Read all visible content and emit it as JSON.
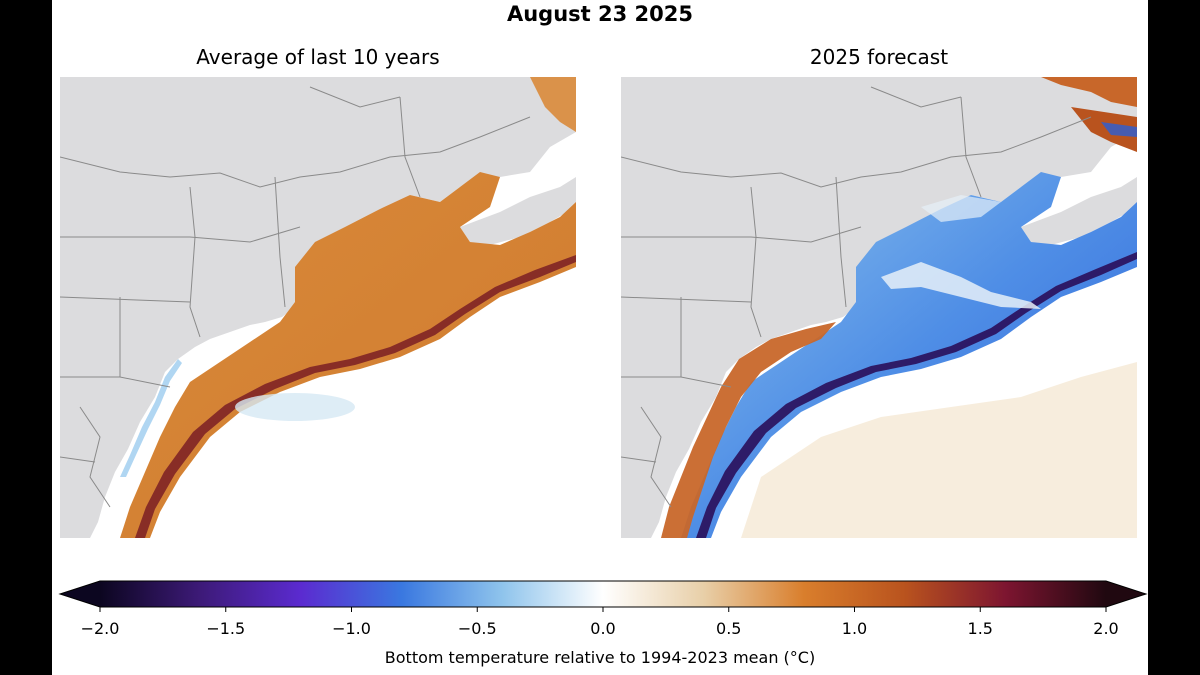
{
  "figure": {
    "title": "August 23 2025"
  },
  "panels": [
    {
      "title": "Average of last 10 years"
    },
    {
      "title": "2025 forecast"
    }
  ],
  "colorbar": {
    "label": "Bottom temperature relative to 1994-2023 mean (°C)",
    "min": -2.0,
    "max": 2.0,
    "ticks": [
      "−2.0",
      "−1.5",
      "−1.0",
      "−0.5",
      "0.0",
      "0.5",
      "1.0",
      "1.5",
      "2.0"
    ],
    "colormap": [
      "#0c0620",
      "#3d1a78",
      "#5b2bd0",
      "#3a78e0",
      "#8fc4ec",
      "#ffffff",
      "#e8cfa8",
      "#d97e2c",
      "#b9531e",
      "#7d1530",
      "#200810"
    ]
  },
  "colors": {
    "land": "#dcdcde",
    "ocean": "#ffffff",
    "borders": "#8a8a8a"
  }
}
